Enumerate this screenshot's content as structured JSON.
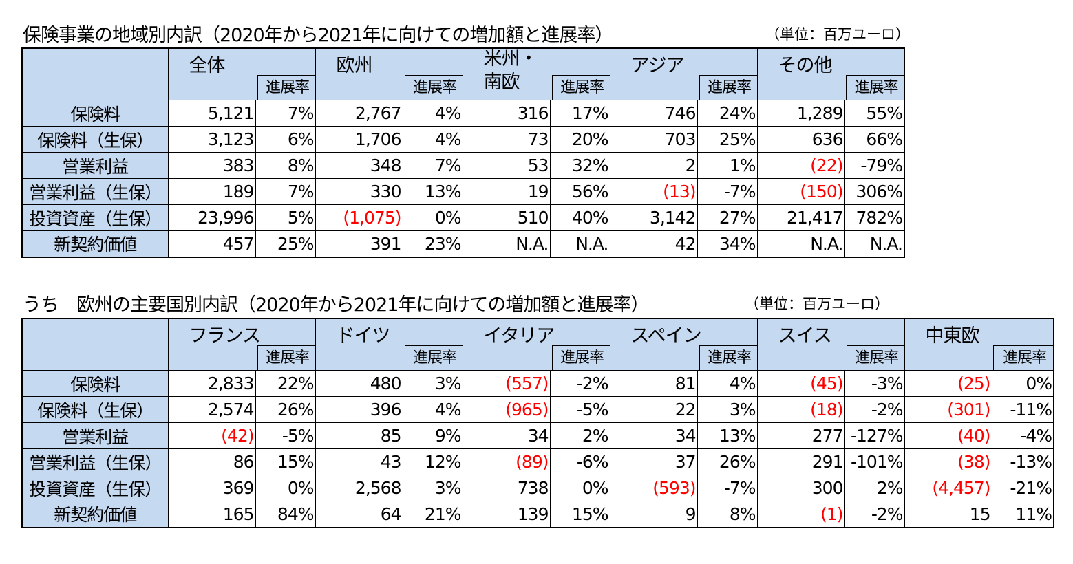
{
  "table1": {
    "title": "保険事業の地域別内訳（2020年から2021年に向けての増加額と進展率）",
    "unit": "（単位：百万ユーロ）",
    "rate_label": "進展率",
    "groups": [
      "全体",
      "欧州",
      "米州・\n南欧",
      "アジア",
      "その他"
    ],
    "rows": [
      {
        "label": "保険料",
        "cells": [
          {
            "v": "5,121",
            "neg": false
          },
          {
            "v": "7%"
          },
          {
            "v": "2,767",
            "neg": false
          },
          {
            "v": "4%"
          },
          {
            "v": "316",
            "neg": false
          },
          {
            "v": "17%"
          },
          {
            "v": "746",
            "neg": false
          },
          {
            "v": "24%"
          },
          {
            "v": "1,289",
            "neg": false
          },
          {
            "v": "55%"
          }
        ]
      },
      {
        "label": "保険料（生保）",
        "cells": [
          {
            "v": "3,123",
            "neg": false
          },
          {
            "v": "6%"
          },
          {
            "v": "1,706",
            "neg": false
          },
          {
            "v": "4%"
          },
          {
            "v": "73",
            "neg": false
          },
          {
            "v": "20%"
          },
          {
            "v": "703",
            "neg": false
          },
          {
            "v": "25%"
          },
          {
            "v": "636",
            "neg": false
          },
          {
            "v": "66%"
          }
        ]
      },
      {
        "label": "営業利益",
        "cells": [
          {
            "v": "383",
            "neg": false
          },
          {
            "v": "8%"
          },
          {
            "v": "348",
            "neg": false
          },
          {
            "v": "7%"
          },
          {
            "v": "53",
            "neg": false
          },
          {
            "v": "32%"
          },
          {
            "v": "2",
            "neg": false
          },
          {
            "v": "1%"
          },
          {
            "v": "(22)",
            "neg": true
          },
          {
            "v": "-79%"
          }
        ]
      },
      {
        "label": "営業利益（生保）",
        "cells": [
          {
            "v": "189",
            "neg": false
          },
          {
            "v": "7%"
          },
          {
            "v": "330",
            "neg": false
          },
          {
            "v": "13%"
          },
          {
            "v": "19",
            "neg": false
          },
          {
            "v": "56%"
          },
          {
            "v": "(13)",
            "neg": true
          },
          {
            "v": "-7%"
          },
          {
            "v": "(150)",
            "neg": true
          },
          {
            "v": "306%"
          }
        ]
      },
      {
        "label": "投資資産（生保）",
        "cells": [
          {
            "v": "23,996",
            "neg": false
          },
          {
            "v": "5%"
          },
          {
            "v": "(1,075)",
            "neg": true
          },
          {
            "v": "0%"
          },
          {
            "v": "510",
            "neg": false
          },
          {
            "v": "40%"
          },
          {
            "v": "3,142",
            "neg": false
          },
          {
            "v": "27%"
          },
          {
            "v": "21,417",
            "neg": false
          },
          {
            "v": "782%"
          }
        ]
      },
      {
        "label": "新契約価値",
        "cells": [
          {
            "v": "457",
            "neg": false
          },
          {
            "v": "25%"
          },
          {
            "v": "391",
            "neg": false
          },
          {
            "v": "23%"
          },
          {
            "v": "N.A.",
            "neg": false
          },
          {
            "v": "N.A."
          },
          {
            "v": "42",
            "neg": false
          },
          {
            "v": "34%"
          },
          {
            "v": "N.A.",
            "neg": false
          },
          {
            "v": "N.A."
          }
        ]
      }
    ]
  },
  "table2": {
    "title": "うち　欧州の主要国別内訳（2020年から2021年に向けての増加額と進展率）",
    "unit": "（単位：百万ユーロ）",
    "rate_label": "進展率",
    "groups": [
      "フランス",
      "ドイツ",
      "イタリア",
      "スペイン",
      "スイス",
      "中東欧"
    ],
    "rows": [
      {
        "label": "保険料",
        "cells": [
          {
            "v": "2,833",
            "neg": false
          },
          {
            "v": "22%"
          },
          {
            "v": "480",
            "neg": false
          },
          {
            "v": "3%"
          },
          {
            "v": "(557)",
            "neg": true
          },
          {
            "v": "-2%"
          },
          {
            "v": "81",
            "neg": false
          },
          {
            "v": "4%"
          },
          {
            "v": "(45)",
            "neg": true
          },
          {
            "v": "-3%"
          },
          {
            "v": "(25)",
            "neg": true
          },
          {
            "v": "0%"
          }
        ]
      },
      {
        "label": "保険料（生保）",
        "cells": [
          {
            "v": "2,574",
            "neg": false
          },
          {
            "v": "26%"
          },
          {
            "v": "396",
            "neg": false
          },
          {
            "v": "4%"
          },
          {
            "v": "(965)",
            "neg": true
          },
          {
            "v": "-5%"
          },
          {
            "v": "22",
            "neg": false
          },
          {
            "v": "3%"
          },
          {
            "v": "(18)",
            "neg": true
          },
          {
            "v": "-2%"
          },
          {
            "v": "(301)",
            "neg": true
          },
          {
            "v": "-11%"
          }
        ]
      },
      {
        "label": "営業利益",
        "cells": [
          {
            "v": "(42)",
            "neg": true
          },
          {
            "v": "-5%"
          },
          {
            "v": "85",
            "neg": false
          },
          {
            "v": "9%"
          },
          {
            "v": "34",
            "neg": false
          },
          {
            "v": "2%"
          },
          {
            "v": "34",
            "neg": false
          },
          {
            "v": "13%"
          },
          {
            "v": "277",
            "neg": false
          },
          {
            "v": "-127%"
          },
          {
            "v": "(40)",
            "neg": true
          },
          {
            "v": "-4%"
          }
        ]
      },
      {
        "label": "営業利益（生保）",
        "cells": [
          {
            "v": "86",
            "neg": false
          },
          {
            "v": "15%"
          },
          {
            "v": "43",
            "neg": false
          },
          {
            "v": "12%"
          },
          {
            "v": "(89)",
            "neg": true
          },
          {
            "v": "-6%"
          },
          {
            "v": "37",
            "neg": false
          },
          {
            "v": "26%"
          },
          {
            "v": "291",
            "neg": false
          },
          {
            "v": "-101%"
          },
          {
            "v": "(38)",
            "neg": true
          },
          {
            "v": "-13%"
          }
        ]
      },
      {
        "label": "投資資産（生保）",
        "cells": [
          {
            "v": "369",
            "neg": false
          },
          {
            "v": "0%"
          },
          {
            "v": "2,568",
            "neg": false
          },
          {
            "v": "3%"
          },
          {
            "v": "738",
            "neg": false
          },
          {
            "v": "0%"
          },
          {
            "v": "(593)",
            "neg": true
          },
          {
            "v": "-7%"
          },
          {
            "v": "300",
            "neg": false
          },
          {
            "v": "2%"
          },
          {
            "v": "(4,457)",
            "neg": true
          },
          {
            "v": "-21%"
          }
        ]
      },
      {
        "label": "新契約価値",
        "cells": [
          {
            "v": "165",
            "neg": false
          },
          {
            "v": "84%"
          },
          {
            "v": "64",
            "neg": false
          },
          {
            "v": "21%"
          },
          {
            "v": "139",
            "neg": false
          },
          {
            "v": "15%"
          },
          {
            "v": "9",
            "neg": false
          },
          {
            "v": "8%"
          },
          {
            "v": "(1)",
            "neg": true
          },
          {
            "v": "-2%"
          },
          {
            "v": "15",
            "neg": false
          },
          {
            "v": "11%"
          }
        ]
      }
    ]
  }
}
